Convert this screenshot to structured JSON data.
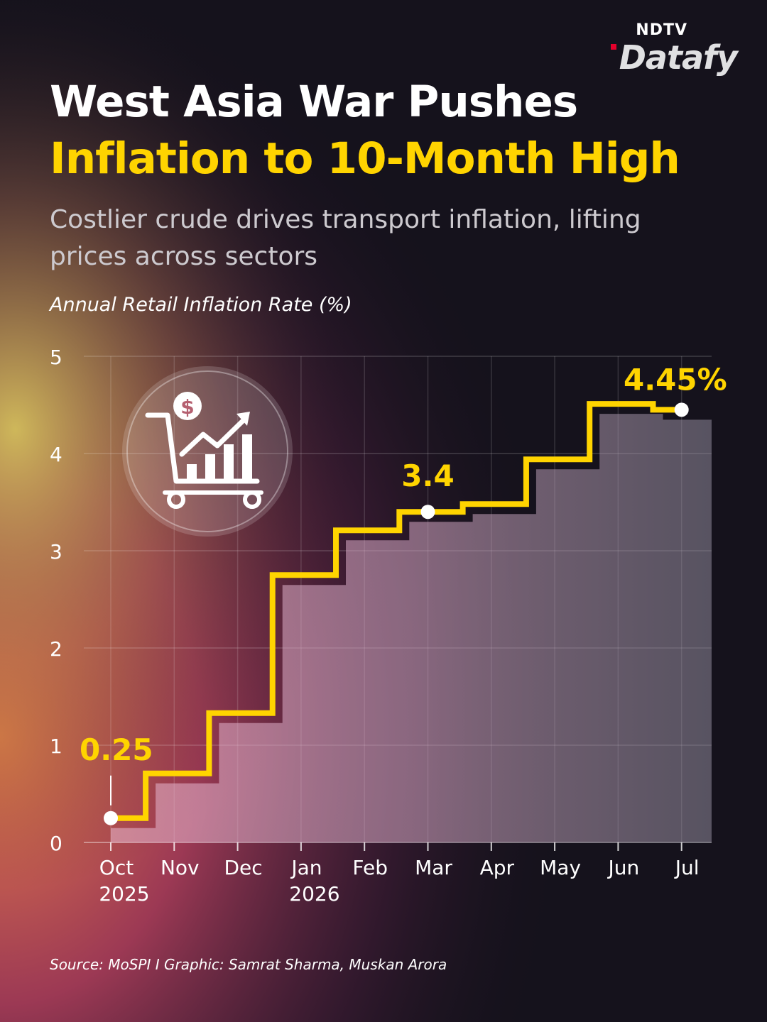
{
  "brand": {
    "top": "NDTV",
    "bottom": "Datafy"
  },
  "title": {
    "line1": "West Asia War Pushes",
    "line2": "Inflation to 10-Month High"
  },
  "subtitle": "Costlier crude drives transport inflation, lifting prices across sectors",
  "footer": "Source: MoSPI I Graphic: Samrat Sharma, Muskan Arora",
  "colors": {
    "line": "#ffd400",
    "title_accent": "#ffd400",
    "text": "#ffffff",
    "point": "#ffffff"
  },
  "icon": "shopping-cart-rising-chart-dollar-icon",
  "chart_data": {
    "type": "line",
    "step": true,
    "ylabel": "Annual Retail Inflation Rate (%)",
    "ylim": [
      0,
      5
    ],
    "yticks": [
      "0",
      "1",
      "2",
      "3",
      "4",
      "5"
    ],
    "grid": true,
    "categories": [
      "Oct",
      "Nov",
      "Dec",
      "Jan",
      "Feb",
      "Mar",
      "Apr",
      "May",
      "Jun",
      "Jul"
    ],
    "year_labels": [
      "2025",
      "",
      "",
      "2026",
      "",
      "",
      "",
      "",
      "",
      ""
    ],
    "values": [
      0.25,
      0.71,
      1.33,
      2.75,
      3.21,
      3.4,
      3.48,
      3.94,
      4.51,
      4.45
    ],
    "annotations": [
      {
        "category": "Oct",
        "text": "0.25"
      },
      {
        "category": "Mar",
        "text": "3.4"
      },
      {
        "category": "Jul",
        "text": "4.45%"
      }
    ]
  }
}
